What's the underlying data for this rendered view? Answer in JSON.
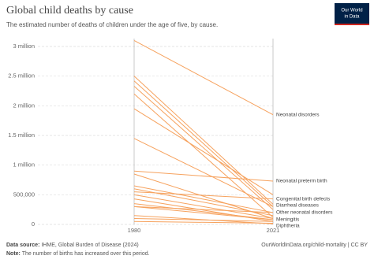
{
  "chart_data": {
    "type": "slope",
    "title": "Global child deaths by cause",
    "subtitle": "The estimated number of deaths of children under the age of five, by cause.",
    "logo": [
      "Our World",
      "in Data"
    ],
    "color": "#f6a25e",
    "x": [
      1980,
      2021
    ],
    "xlim": [
      1980,
      2021
    ],
    "ylim": [
      0,
      3000000
    ],
    "yticks": [
      0,
      {
        "value": 500000,
        "label": "500,000"
      },
      {
        "value": 1000000,
        "label": "1 million"
      },
      {
        "value": 1500000,
        "label": "1.5 million"
      },
      {
        "value": 2000000,
        "label": "2 million"
      },
      {
        "value": 2500000,
        "label": "2.5 million"
      },
      {
        "value": 3000000,
        "label": "3 million"
      }
    ],
    "grid": true,
    "series": [
      {
        "name": "Neonatal disorders",
        "values": [
          3100000,
          1850000
        ]
      },
      {
        "name": "Neonatal preterm birth",
        "values": [
          900000,
          730000
        ]
      },
      {
        "name": "Congenital birth defects",
        "values": [
          550000,
          430000
        ]
      },
      {
        "name": "Diarrheal diseases",
        "values": [
          2500000,
          340000
        ]
      },
      {
        "name": "Other neonatal disorders",
        "values": [
          300000,
          200000
        ]
      },
      {
        "name": "Meningitis",
        "values": [
          300000,
          80000
        ]
      },
      {
        "name": "Diphtheria",
        "values": [
          150000,
          10000
        ]
      },
      {
        "values": [
          2420000,
          300000
        ]
      },
      {
        "values": [
          2330000,
          250000
        ]
      },
      {
        "values": [
          2200000,
          120000
        ]
      },
      {
        "values": [
          1950000,
          500000
        ]
      },
      {
        "values": [
          1450000,
          300000
        ]
      },
      {
        "values": [
          850000,
          100000
        ]
      },
      {
        "values": [
          650000,
          200000
        ]
      },
      {
        "values": [
          600000,
          150000
        ]
      },
      {
        "values": [
          500000,
          100000
        ]
      },
      {
        "values": [
          430000,
          50000
        ]
      },
      {
        "values": [
          350000,
          80000
        ]
      },
      {
        "values": [
          100000,
          50000
        ]
      },
      {
        "values": [
          50000,
          20000
        ]
      }
    ],
    "footer": {
      "source_label": "Data source:",
      "source": "IHME, Global Burden of Disease (2024)",
      "url": "OurWorldInData.org/child-mortality | CC BY",
      "note_label": "Note:",
      "note": "The number of births has increased over this period."
    }
  }
}
